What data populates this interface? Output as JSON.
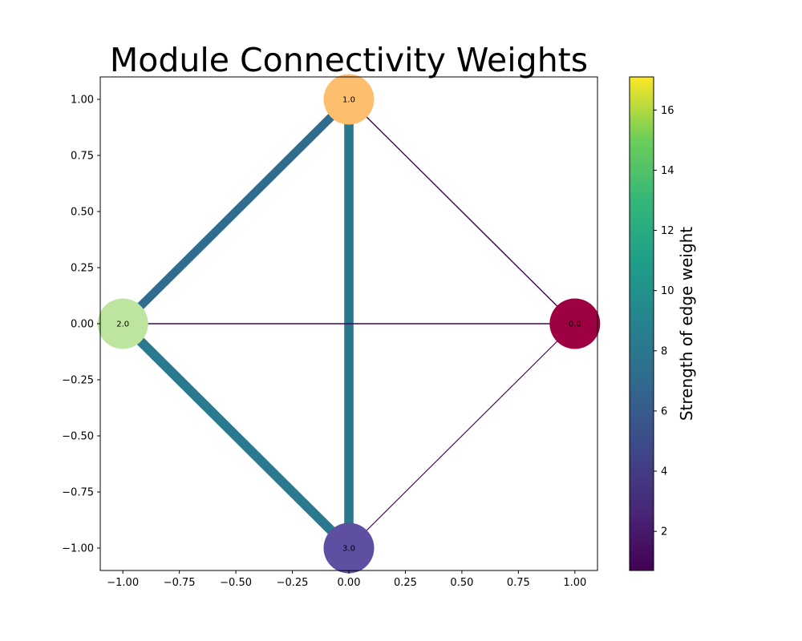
{
  "chart_data": {
    "type": "network",
    "title": "Module Connectivity Weights",
    "xlim": [
      -1.1,
      1.1
    ],
    "ylim": [
      -1.1,
      1.1
    ],
    "x_ticks": [
      -1.0,
      -0.75,
      -0.5,
      -0.25,
      0.0,
      0.25,
      0.5,
      0.75,
      1.0
    ],
    "x_tick_labels": [
      "−1.00",
      "−0.75",
      "−0.50",
      "−0.25",
      "0.00",
      "0.25",
      "0.50",
      "0.75",
      "1.00"
    ],
    "y_ticks": [
      1.0,
      0.75,
      0.5,
      0.25,
      0.0,
      -0.25,
      -0.5,
      -0.75,
      -1.0
    ],
    "y_tick_labels": [
      "1.00",
      "0.75",
      "0.50",
      "0.25",
      "0.00",
      "−0.25",
      "−0.50",
      "−0.75",
      "−1.00"
    ],
    "nodes": [
      {
        "id": "0.0",
        "label": "0.0",
        "x": 1.0,
        "y": 0.0,
        "color": "#9e0142"
      },
      {
        "id": "1.0",
        "label": "1.0",
        "x": 0.0,
        "y": 1.0,
        "color": "#fdbe6e"
      },
      {
        "id": "2.0",
        "label": "2.0",
        "x": -1.0,
        "y": 0.0,
        "color": "#bee5a0"
      },
      {
        "id": "3.0",
        "label": "3.0",
        "x": 0.0,
        "y": -1.0,
        "color": "#5e4fa2"
      }
    ],
    "edges": [
      {
        "source": "1.0",
        "target": "2.0",
        "weight": 7.2
      },
      {
        "source": "2.0",
        "target": "3.0",
        "weight": 8.2
      },
      {
        "source": "1.0",
        "target": "3.0",
        "weight": 8.0
      },
      {
        "source": "1.0",
        "target": "0.0",
        "weight": 1.0
      },
      {
        "source": "2.0",
        "target": "0.0",
        "weight": 1.0
      },
      {
        "source": "3.0",
        "target": "0.0",
        "weight": 0.8
      }
    ],
    "colorbar": {
      "label": "Strength of edge weight",
      "colormap": "viridis",
      "range": [
        0.7,
        17.1
      ],
      "ticks": [
        2,
        4,
        6,
        8,
        10,
        12,
        14,
        16
      ],
      "tick_labels": [
        "2",
        "4",
        "6",
        "8",
        "10",
        "12",
        "14",
        "16"
      ]
    }
  }
}
